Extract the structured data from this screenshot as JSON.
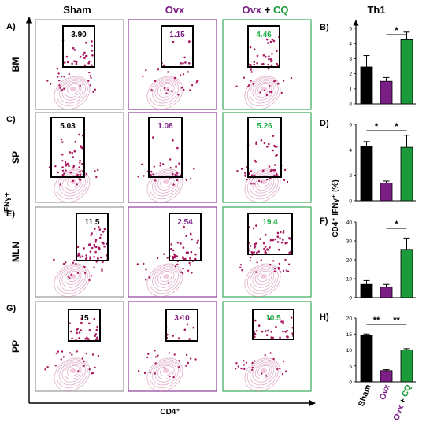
{
  "columns": [
    {
      "label": "Sham",
      "color": "#000000"
    },
    {
      "label": "Ovx",
      "color": "#7b1f86"
    },
    {
      "label_a": "Ovx",
      "label_plus": " + ",
      "label_b": "CQ",
      "color_a": "#7b1f86",
      "color_b": "#1a9a3a"
    }
  ],
  "rows": [
    {
      "letter": "A)",
      "tissue": "BM",
      "values": [
        "3.90",
        "1.15",
        "4.46"
      ]
    },
    {
      "letter": "C)",
      "tissue": "SP",
      "values": [
        "5.03",
        "1.08",
        "5.26"
      ]
    },
    {
      "letter": "E)",
      "tissue": "MLN",
      "values": [
        "11.5",
        "2.54",
        "19.4"
      ]
    },
    {
      "letter": "G)",
      "tissue": "PP",
      "values": [
        "15",
        "3.10",
        "10.5"
      ]
    }
  ],
  "axis": {
    "y_label": "IFNγ+",
    "x_label": "CD4⁺"
  },
  "colors": {
    "sham": "#000000",
    "ovx": "#7b1f86",
    "ovx_cq": "#1a9a3a",
    "flow": "#a8175f",
    "cq_text": "#22b04b"
  },
  "bar_panel": {
    "title": "Th1",
    "y_label": "CD4⁺ IFNγ⁺ (%)"
  },
  "chart_data": [
    {
      "type": "bar",
      "panel": "B)",
      "categories": [
        "Sham",
        "Ovx",
        "Ovx + CQ"
      ],
      "values": [
        2.45,
        1.5,
        4.25
      ],
      "errors": [
        0.75,
        0.25,
        0.5
      ],
      "ylim": [
        0,
        5
      ],
      "yticks": [
        "0",
        "1",
        "2",
        "3",
        "4",
        "5"
      ],
      "significance": [
        {
          "from": 1,
          "to": 2,
          "label": "*"
        }
      ]
    },
    {
      "type": "bar",
      "panel": "D)",
      "categories": [
        "Sham",
        "Ovx",
        "Ovx + CQ"
      ],
      "values": [
        4.25,
        1.4,
        4.2
      ],
      "errors": [
        0.4,
        0.15,
        0.95
      ],
      "ylim": [
        0,
        6
      ],
      "yticks": [
        "0",
        "2",
        "4",
        "6"
      ],
      "significance": [
        {
          "from": 0,
          "to": 1,
          "label": "*"
        },
        {
          "from": 1,
          "to": 2,
          "label": "*"
        }
      ]
    },
    {
      "type": "bar",
      "panel": "F)",
      "categories": [
        "Sham",
        "Ovx",
        "Ovx + CQ"
      ],
      "values": [
        7,
        5.5,
        25.5
      ],
      "errors": [
        2,
        1.5,
        6
      ],
      "ylim": [
        0,
        40
      ],
      "yticks": [
        "0",
        "10",
        "20",
        "30",
        "40"
      ],
      "significance": [
        {
          "from": 1,
          "to": 2,
          "label": "*"
        }
      ]
    },
    {
      "type": "bar",
      "panel": "H)",
      "categories": [
        "Sham",
        "Ovx",
        "Ovx + CQ"
      ],
      "values": [
        14.5,
        3.5,
        10
      ],
      "errors": [
        0.5,
        0.3,
        0.4
      ],
      "ylim": [
        0,
        20
      ],
      "yticks": [
        "0",
        "5",
        "10",
        "15",
        "20"
      ],
      "significance": [
        {
          "from": 0,
          "to": 1,
          "label": "**"
        },
        {
          "from": 1,
          "to": 2,
          "label": "**"
        }
      ]
    }
  ],
  "x_categories": {
    "sham": "Sham",
    "ovx": "Ovx",
    "ovx_a": "Ovx",
    "plus": " + ",
    "cq": "CQ"
  }
}
